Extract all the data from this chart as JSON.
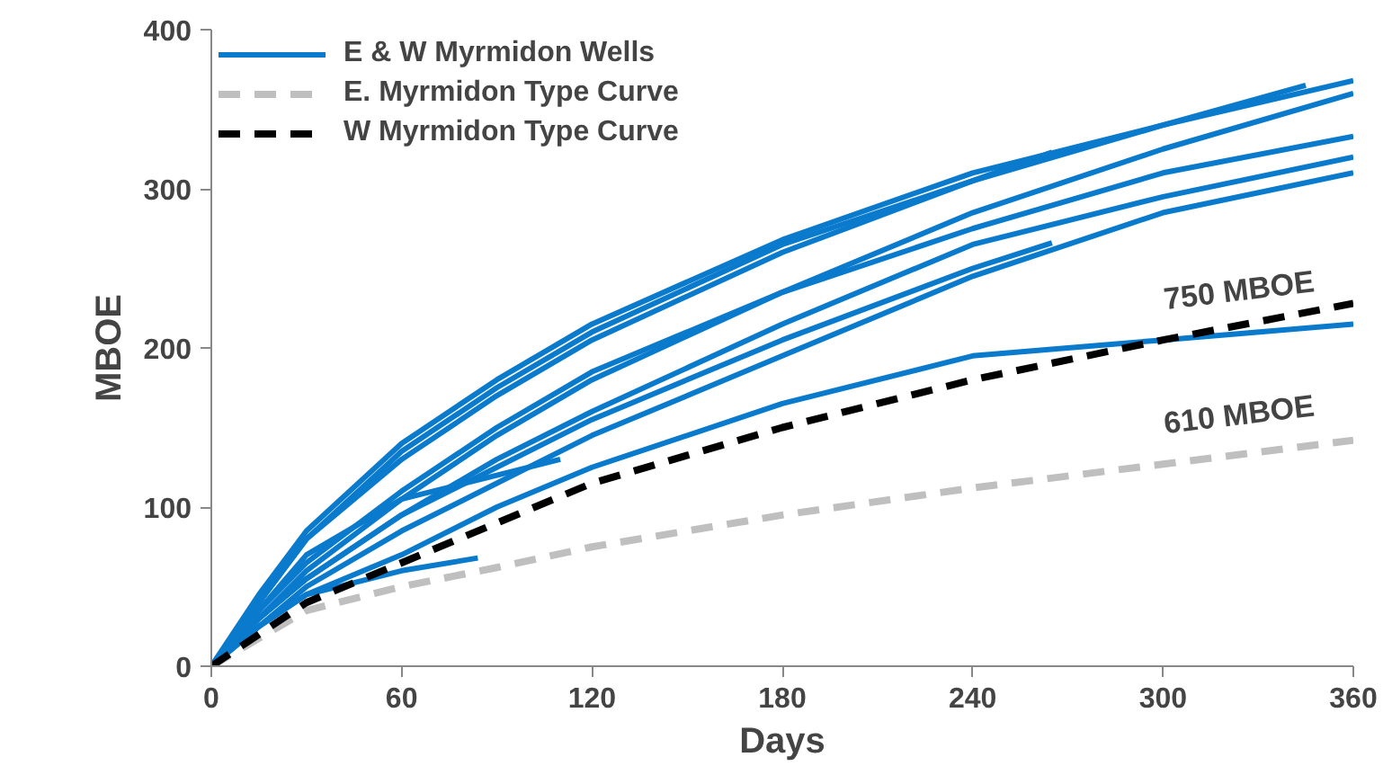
{
  "chart_data": {
    "type": "line",
    "xlabel": "Days",
    "ylabel": "MBOE",
    "xlim": [
      0,
      360
    ],
    "ylim": [
      0,
      400
    ],
    "xticks": [
      0,
      60,
      120,
      180,
      240,
      300,
      360
    ],
    "yticks": [
      0,
      100,
      200,
      300,
      400
    ],
    "grid": false,
    "legend": "top left",
    "marker": "none",
    "series": [
      {
        "name": "E & W Myrmidon Wells",
        "color": "#0a7acd",
        "line_style": "solid",
        "x": [
          0,
          15,
          30,
          60,
          90,
          120,
          180,
          240,
          300,
          360
        ],
        "values": [
          0,
          40,
          80,
          135,
          175,
          210,
          265,
          305,
          340,
          368
        ]
      },
      {
        "color": "#0a7acd",
        "line_style": "solid",
        "x": [
          0,
          15,
          30,
          60,
          90,
          120,
          180,
          240,
          300,
          345
        ],
        "values": [
          0,
          45,
          85,
          140,
          180,
          215,
          268,
          310,
          340,
          365
        ]
      },
      {
        "color": "#0a7acd",
        "line_style": "solid",
        "x": [
          0,
          15,
          30,
          60,
          90,
          120,
          180,
          240,
          300,
          360
        ],
        "values": [
          0,
          30,
          60,
          105,
          145,
          180,
          235,
          285,
          325,
          360
        ]
      },
      {
        "color": "#0a7acd",
        "line_style": "solid",
        "x": [
          0,
          15,
          30,
          60,
          90,
          120,
          180,
          240,
          265
        ],
        "values": [
          0,
          40,
          80,
          130,
          170,
          205,
          260,
          305,
          323
        ]
      },
      {
        "color": "#0a7acd",
        "line_style": "solid",
        "x": [
          0,
          15,
          30,
          60,
          90,
          120,
          180,
          240,
          300,
          360
        ],
        "values": [
          0,
          35,
          65,
          110,
          150,
          185,
          235,
          275,
          310,
          333
        ]
      },
      {
        "color": "#0a7acd",
        "line_style": "solid",
        "x": [
          0,
          15,
          30,
          60,
          90,
          120,
          180,
          240,
          300,
          360
        ],
        "values": [
          0,
          30,
          55,
          95,
          130,
          160,
          215,
          265,
          295,
          320
        ]
      },
      {
        "color": "#0a7acd",
        "line_style": "solid",
        "x": [
          0,
          15,
          30,
          60,
          90,
          120,
          180,
          240,
          300,
          360
        ],
        "values": [
          0,
          25,
          50,
          85,
          115,
          145,
          195,
          245,
          285,
          310
        ]
      },
      {
        "color": "#0a7acd",
        "line_style": "solid",
        "x": [
          0,
          15,
          30,
          60,
          90,
          120,
          180,
          240,
          265
        ],
        "values": [
          0,
          30,
          55,
          95,
          125,
          155,
          205,
          250,
          266
        ]
      },
      {
        "color": "#0a7acd",
        "line_style": "solid",
        "x": [
          0,
          15,
          30,
          60,
          90,
          120,
          180,
          240,
          300,
          360
        ],
        "values": [
          0,
          25,
          45,
          70,
          100,
          125,
          165,
          195,
          205,
          215
        ]
      },
      {
        "color": "#0a7acd",
        "line_style": "solid",
        "x": [
          0,
          15,
          30,
          60,
          90,
          110
        ],
        "values": [
          0,
          35,
          70,
          105,
          120,
          130
        ]
      },
      {
        "color": "#0a7acd",
        "line_style": "solid",
        "x": [
          0,
          15,
          30,
          60,
          84
        ],
        "values": [
          0,
          25,
          45,
          60,
          68
        ]
      },
      {
        "name": "E. Myrmidon Type Curve",
        "color": "#bfbfbf",
        "line_style": "dashed",
        "x": [
          0,
          30,
          60,
          90,
          120,
          180,
          240,
          300,
          360
        ],
        "values": [
          0,
          35,
          50,
          62,
          75,
          95,
          112,
          127,
          142
        ]
      },
      {
        "name": "W Myrmidon Type Curve",
        "color": "#000000",
        "line_style": "dashed",
        "x": [
          0,
          30,
          60,
          90,
          120,
          180,
          240,
          300,
          360
        ],
        "values": [
          0,
          40,
          65,
          90,
          115,
          150,
          180,
          205,
          228
        ]
      }
    ],
    "annotations": [
      "750 MBOE",
      "610 MBOE"
    ]
  }
}
